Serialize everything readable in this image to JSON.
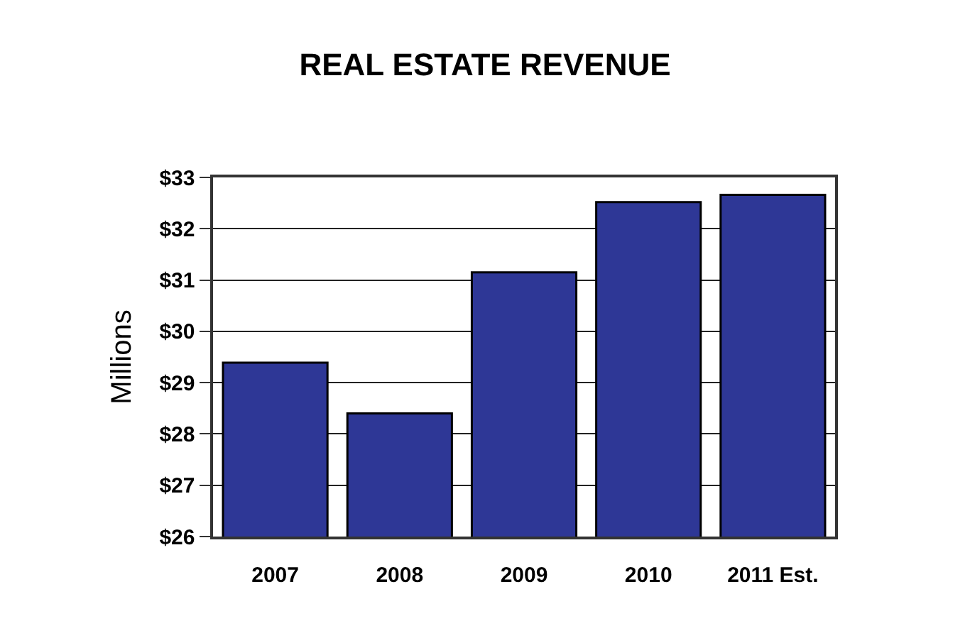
{
  "chart_data": {
    "type": "bar",
    "title": "REAL ESTATE REVENUE",
    "ylabel": "Millions",
    "categories": [
      "2007",
      "2008",
      "2009",
      "2010",
      "2011 Est."
    ],
    "values": [
      29.39,
      28.4,
      31.15,
      32.52,
      32.66
    ],
    "color": "#2e3796",
    "ylim": [
      26,
      33
    ],
    "yticks": [
      {
        "value": 26,
        "label": "$26"
      },
      {
        "value": 27,
        "label": "$27"
      },
      {
        "value": 28,
        "label": "$28"
      },
      {
        "value": 29,
        "label": "$29"
      },
      {
        "value": 30,
        "label": "$30"
      },
      {
        "value": 31,
        "label": "$31"
      },
      {
        "value": 32,
        "label": "$32"
      },
      {
        "value": 33,
        "label": "$33"
      }
    ],
    "grid": "y"
  }
}
